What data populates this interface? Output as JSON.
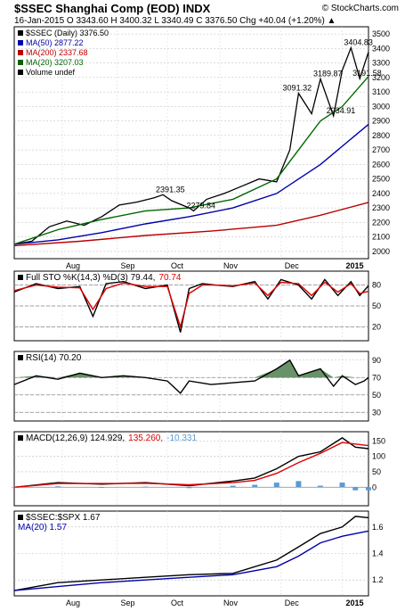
{
  "header": {
    "symbol_title": "$SSEC Shanghai Comp (EOD) INDX",
    "brand": "© StockCharts.com",
    "quote_line": "16-Jan-2015  O 3343.60  H 3400.32  L 3340.49  C 3376.50  Chg +40.04 (+1.20%) ▲"
  },
  "colors": {
    "price_bar": "#000000",
    "bar_up": "#000000",
    "bar_down": "#cc0000",
    "ma50": "#0000aa",
    "ma200": "#bb0000",
    "ma20": "#006600",
    "sto_k": "#000000",
    "sto_d": "#dd0000",
    "rsi_fill": "#4f7f4f",
    "macd_line": "#000000",
    "macd_signal": "#dd0000",
    "macd_hist": "#5b9bd5",
    "ratio": "#000000",
    "ratio_ma": "#0000aa"
  },
  "chart_data": [
    {
      "type": "line",
      "name": "price",
      "title": "$SSEC (Daily) 3376.50",
      "x_ticks": [
        "Aug",
        "Sep",
        "Oct",
        "Nov",
        "Dec",
        "2015"
      ],
      "ylim": [
        1950,
        3550
      ],
      "y_ticks": [
        2000,
        2100,
        2200,
        2300,
        2400,
        2500,
        2600,
        2700,
        2800,
        2900,
        3000,
        3100,
        3200,
        3300,
        3400,
        3500
      ],
      "legend": [
        {
          "label": "$SSEC (Daily) 3376.50",
          "color_key": "price_bar"
        },
        {
          "label": "MA(50) 2877.22",
          "color_key": "ma50"
        },
        {
          "label": "MA(200) 2337.68",
          "color_key": "ma200"
        },
        {
          "label": "MA(20) 3207.03",
          "color_key": "ma20"
        },
        {
          "label": "Volume undef",
          "color_key": "price_bar"
        }
      ],
      "annotations": [
        {
          "text": "2391.35",
          "index": 68,
          "value": 2391.35
        },
        {
          "text": "2279.84",
          "index": 82,
          "value": 2279.84
        },
        {
          "text": "3091.32",
          "index": 126,
          "value": 3091.32
        },
        {
          "text": "3189.87",
          "index": 140,
          "value": 3189.87
        },
        {
          "text": "2934.91",
          "index": 146,
          "value": 2934.91
        },
        {
          "text": "3404.83",
          "index": 154,
          "value": 3404.83
        },
        {
          "text": "3191.58",
          "index": 158,
          "value": 3191.58
        }
      ],
      "series": [
        {
          "name": "$SSEC",
          "x": [
            0,
            8,
            16,
            24,
            32,
            40,
            48,
            56,
            64,
            68,
            72,
            80,
            82,
            88,
            96,
            104,
            112,
            120,
            126,
            130,
            136,
            140,
            146,
            150,
            154,
            158,
            162
          ],
          "values": [
            2050,
            2070,
            2170,
            2210,
            2180,
            2240,
            2320,
            2340,
            2370,
            2391,
            2350,
            2300,
            2280,
            2360,
            2400,
            2450,
            2500,
            2480,
            2700,
            3091,
            2950,
            3190,
            2935,
            3250,
            3405,
            3192,
            3376
          ]
        },
        {
          "name": "MA(50)",
          "x": [
            0,
            20,
            40,
            60,
            80,
            100,
            120,
            140,
            162
          ],
          "values": [
            2050,
            2080,
            2130,
            2190,
            2240,
            2300,
            2400,
            2600,
            2877
          ]
        },
        {
          "name": "MA(200)",
          "x": [
            0,
            30,
            60,
            90,
            120,
            140,
            162
          ],
          "values": [
            2040,
            2070,
            2110,
            2140,
            2180,
            2250,
            2338
          ]
        },
        {
          "name": "MA(20)",
          "x": [
            0,
            20,
            40,
            60,
            80,
            100,
            120,
            130,
            140,
            150,
            162
          ],
          "values": [
            2050,
            2150,
            2220,
            2280,
            2300,
            2360,
            2500,
            2700,
            2900,
            3000,
            3207
          ]
        }
      ]
    },
    {
      "type": "line",
      "name": "stochastic",
      "title": "Full STO %K(14,3) %D(3) 79.44, 70.74",
      "legend": [
        {
          "label": "Full STO %K(14,3) %D(3) 79.44,",
          "color_key": "sto_k"
        },
        {
          "label": "70.74",
          "color_key": "sto_d"
        }
      ],
      "ylim": [
        0,
        100
      ],
      "y_ticks": [
        20,
        50,
        80
      ],
      "series": [
        {
          "name": "%K",
          "x": [
            0,
            10,
            20,
            30,
            36,
            42,
            50,
            60,
            70,
            76,
            80,
            86,
            92,
            100,
            110,
            116,
            122,
            130,
            136,
            142,
            148,
            154,
            158,
            162
          ],
          "values": [
            70,
            82,
            75,
            78,
            35,
            82,
            85,
            75,
            80,
            12,
            75,
            82,
            80,
            78,
            85,
            60,
            88,
            80,
            60,
            88,
            65,
            85,
            65,
            79
          ]
        },
        {
          "name": "%D",
          "x": [
            0,
            10,
            20,
            30,
            36,
            42,
            50,
            60,
            70,
            76,
            80,
            86,
            92,
            100,
            110,
            116,
            122,
            130,
            136,
            142,
            148,
            154,
            158,
            162
          ],
          "values": [
            72,
            80,
            77,
            76,
            45,
            75,
            83,
            78,
            78,
            20,
            68,
            80,
            80,
            79,
            83,
            65,
            84,
            82,
            65,
            84,
            70,
            82,
            68,
            71
          ]
        }
      ]
    },
    {
      "type": "area",
      "name": "rsi",
      "title": "RSI(14) 70.20",
      "legend": [
        {
          "label": "RSI(14) 70.20",
          "color_key": "macd_line"
        }
      ],
      "ylim": [
        20,
        100
      ],
      "y_ticks": [
        30,
        50,
        70,
        90
      ],
      "series": [
        {
          "name": "RSI",
          "x": [
            0,
            10,
            20,
            30,
            40,
            50,
            60,
            70,
            76,
            80,
            90,
            100,
            110,
            120,
            126,
            130,
            140,
            146,
            150,
            156,
            160,
            162
          ],
          "values": [
            62,
            72,
            68,
            75,
            70,
            72,
            70,
            66,
            52,
            66,
            62,
            64,
            66,
            80,
            90,
            72,
            80,
            60,
            72,
            62,
            66,
            70
          ]
        }
      ]
    },
    {
      "type": "line",
      "name": "macd",
      "title": "MACD(12,26,9) 124.929, 135.260, -10.331",
      "legend": [
        {
          "label": "MACD(12,26,9) 124.929,",
          "color_key": "macd_line"
        },
        {
          "label": "135.260,",
          "color_key": "macd_signal"
        },
        {
          "label": "-10.331",
          "color_key": "macd_hist"
        }
      ],
      "ylim": [
        -60,
        180
      ],
      "y_ticks": [
        0,
        50,
        100,
        150
      ],
      "series": [
        {
          "name": "MACD",
          "x": [
            0,
            20,
            40,
            60,
            80,
            100,
            110,
            120,
            130,
            140,
            150,
            156,
            162
          ],
          "values": [
            0,
            15,
            10,
            15,
            5,
            20,
            30,
            60,
            100,
            115,
            160,
            130,
            125
          ]
        },
        {
          "name": "Signal",
          "x": [
            0,
            20,
            40,
            60,
            80,
            100,
            110,
            120,
            130,
            140,
            150,
            156,
            162
          ],
          "values": [
            0,
            12,
            12,
            13,
            8,
            15,
            22,
            45,
            80,
            110,
            145,
            140,
            135
          ]
        },
        {
          "name": "Histogram",
          "x": [
            0,
            20,
            40,
            60,
            80,
            100,
            110,
            120,
            130,
            140,
            150,
            156,
            162
          ],
          "values": [
            0,
            3,
            -2,
            2,
            -3,
            5,
            8,
            15,
            20,
            5,
            15,
            -10,
            -10
          ]
        }
      ]
    },
    {
      "type": "line",
      "name": "relative",
      "title": "$SSEC:$SPX 1.67",
      "x_ticks": [
        "Aug",
        "Sep",
        "Oct",
        "Nov",
        "Dec",
        "2015"
      ],
      "legend": [
        {
          "label": "$SSEC:$SPX 1.67",
          "color_key": "ratio"
        },
        {
          "label": "MA(20) 1.57",
          "color_key": "ratio_ma"
        }
      ],
      "ylim": [
        1.08,
        1.72
      ],
      "y_ticks": [
        1.2,
        1.4,
        1.6
      ],
      "series": [
        {
          "name": "$SSEC:$SPX",
          "x": [
            0,
            20,
            40,
            60,
            80,
            100,
            120,
            130,
            140,
            150,
            156,
            162
          ],
          "values": [
            1.12,
            1.18,
            1.2,
            1.22,
            1.24,
            1.25,
            1.35,
            1.45,
            1.55,
            1.6,
            1.68,
            1.67
          ]
        },
        {
          "name": "MA(20)",
          "x": [
            0,
            20,
            40,
            60,
            80,
            100,
            120,
            130,
            140,
            150,
            162
          ],
          "values": [
            1.12,
            1.15,
            1.18,
            1.2,
            1.22,
            1.24,
            1.3,
            1.38,
            1.48,
            1.53,
            1.57
          ]
        }
      ]
    }
  ]
}
